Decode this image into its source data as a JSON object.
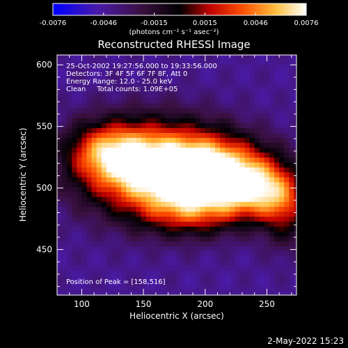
{
  "chart_data": {
    "type": "heatmap",
    "title": "Reconstructed RHESSI Image",
    "xlabel": "Heliocentric X (arcsec)",
    "ylabel": "Heliocentric Y (arcsec)",
    "xlim": [
      80,
      274
    ],
    "ylim": [
      413,
      608
    ],
    "xticks": [
      100,
      150,
      200,
      250
    ],
    "yticks": [
      450,
      500,
      550,
      600
    ],
    "colorbar": {
      "min": -0.0076,
      "max": 0.0076,
      "ticks": [
        "-0.0076",
        "-0.0046",
        "-0.0015",
        "0.0015",
        "0.0046",
        "0.0076"
      ],
      "units_label": "(photons cm⁻² s⁻¹ asec⁻²)",
      "colormap": [
        "#0000ff",
        "#5a1fa0",
        "#000000",
        "#ff0000",
        "#ff8c00",
        "#ffff80",
        "#ffffff"
      ]
    },
    "annotations": [
      "25-Oct-2002 19:27:56.000 to 19:33:56.000",
      "Detectors: 3F 4F 5F 6F 7F 8F, Att 0",
      "Energy Range: 12.0 - 25.0 keV",
      "Clean     Total counts: 1.09E+05"
    ],
    "peak_label": "Position of Peak = [158,516]",
    "peak": [
      158,
      516
    ],
    "grid": false
  },
  "footer": {
    "timestamp": "2-May-2022 15:23"
  }
}
